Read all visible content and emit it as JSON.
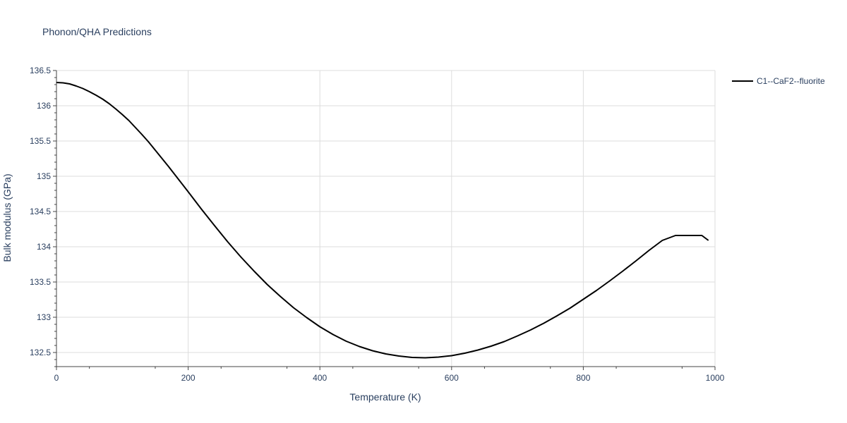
{
  "chart_data": {
    "type": "line",
    "title": "Phonon/QHA Predictions",
    "xlabel": "Temperature (K)",
    "ylabel": "Bulk modulus (GPa)",
    "xlim": [
      0,
      1000
    ],
    "ylim": [
      132.3,
      136.5
    ],
    "xticks": [
      0,
      200,
      400,
      600,
      800,
      1000
    ],
    "xtick_labels": [
      "0",
      "200",
      "400",
      "600",
      "800",
      "1000"
    ],
    "yticks": [
      132.5,
      133,
      133.5,
      134,
      134.5,
      135,
      135.5,
      136,
      136.5
    ],
    "ytick_labels": [
      "132.5",
      "133",
      "133.5",
      "134",
      "134.5",
      "135",
      "135.5",
      "136",
      "136.5"
    ],
    "grid": true,
    "legend_position": "top-right",
    "series": [
      {
        "name": "C1--CaF2--fluorite",
        "color": "#000000",
        "x": [
          0,
          10,
          20,
          30,
          40,
          50,
          60,
          70,
          80,
          90,
          100,
          110,
          120,
          130,
          140,
          150,
          160,
          170,
          180,
          190,
          200,
          220,
          240,
          260,
          280,
          300,
          320,
          340,
          360,
          380,
          400,
          420,
          440,
          460,
          480,
          500,
          520,
          540,
          560,
          580,
          600,
          620,
          640,
          660,
          680,
          700,
          720,
          740,
          760,
          780,
          800,
          820,
          840,
          860,
          880,
          900,
          920,
          940,
          960,
          980,
          990
        ],
        "y": [
          136.33,
          136.325,
          136.31,
          136.28,
          136.245,
          136.2,
          136.15,
          136.095,
          136.03,
          135.955,
          135.875,
          135.79,
          135.69,
          135.59,
          135.485,
          135.37,
          135.255,
          135.14,
          135.02,
          134.9,
          134.78,
          134.535,
          134.3,
          134.07,
          133.855,
          133.655,
          133.465,
          133.295,
          133.135,
          132.995,
          132.865,
          132.755,
          132.66,
          132.585,
          132.525,
          132.48,
          132.45,
          132.43,
          132.425,
          132.435,
          132.455,
          132.49,
          132.535,
          132.59,
          132.655,
          132.735,
          132.82,
          132.915,
          133.02,
          133.13,
          133.255,
          133.38,
          133.515,
          133.655,
          133.8,
          133.95,
          134.09,
          134.16,
          134.16,
          134.16,
          134.09
        ]
      }
    ]
  }
}
